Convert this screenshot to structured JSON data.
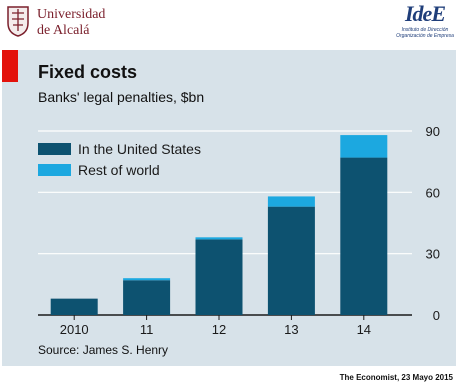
{
  "header": {
    "university_name": "Universidad\nde Alcalá",
    "institute_logo_text": "IdeE",
    "institute_name": "Instituto de Dirección\nOrganización de Empresa"
  },
  "chart_data": {
    "type": "bar",
    "stacked": true,
    "title": "Fixed costs",
    "subtitle": "Banks' legal penalties, $bn",
    "categories": [
      "2010",
      "11",
      "12",
      "13",
      "14"
    ],
    "series": [
      {
        "name": "In the United States",
        "color": "#0d5270",
        "values": [
          8,
          17,
          37,
          53,
          77
        ]
      },
      {
        "name": "Rest of world",
        "color": "#1ca8e0",
        "values": [
          0,
          1,
          1,
          5,
          11
        ]
      }
    ],
    "y_ticks": [
      0,
      30,
      60,
      90
    ],
    "ylim": [
      0,
      90
    ],
    "axis_side": "right",
    "legend_position": "top-left",
    "source": "Source: James S. Henry"
  },
  "footer": {
    "credit": "The Economist, 23 Mayo 2015"
  }
}
